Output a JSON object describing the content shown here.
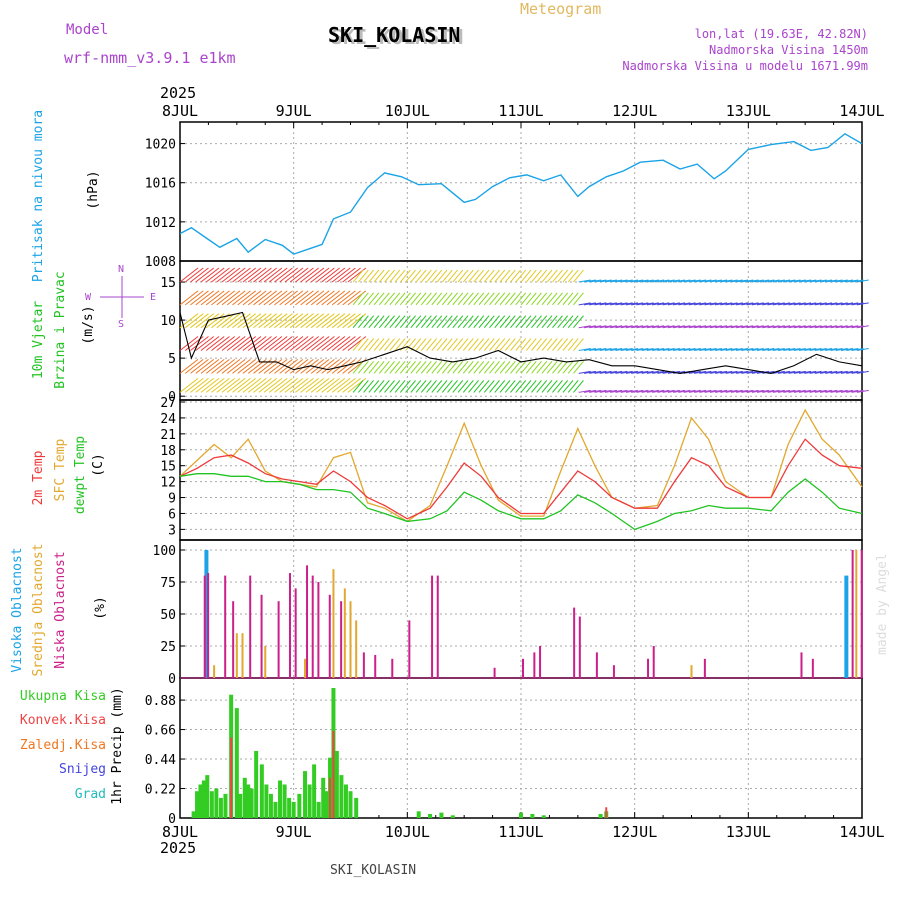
{
  "header": {
    "model_label": "Model",
    "model_name": "wrf-nmm_v3.9.1 e1km",
    "station": "SKI_KOLASIN",
    "product": "Meteogram",
    "lonlat": "lon,lat (19.63E, 42.82N)",
    "elevation": "Nadmorska Visina 1450m",
    "model_elevation": "Nadmorska Visina u modelu 1671.99m",
    "year": "2025",
    "footer_station": "SKI_KOLASIN",
    "watermark": "made by Angel"
  },
  "colors": {
    "pressure": "#1aa3e6",
    "temp": "#ee3a3a",
    "sfc": "#e2a82e",
    "dew": "#22c322",
    "high_cloud": "#1aa3e6",
    "mid_cloud": "#e2a82e",
    "low_cloud": "#cc1f8a",
    "total_precip": "#33cc22",
    "conv_precip": "#ee4444",
    "frz_precip": "#ee7722",
    "snow": "#4444dd",
    "grad": "#22bbbb",
    "wind_label": "#22c322",
    "dir_label": "#aa44cc"
  },
  "time_axis": {
    "labels": [
      "8JUL",
      "9JUL",
      "10JUL",
      "11JUL",
      "12JUL",
      "13JUL",
      "14JUL"
    ],
    "start": "2025-07-08T00:00",
    "end": "2025-07-14T00:00"
  },
  "panels": {
    "pressure": {
      "ylabel1": "Pritisak na nivou mora",
      "ylabel2": "(hPa)"
    },
    "wind": {
      "ylabel1": "10m Vjetar",
      "ylabel2": "Brzina i Pravac",
      "ylabel3": "(m/s)",
      "compass_n": "N",
      "compass_s": "S",
      "compass_w": "W",
      "compass_e": "E"
    },
    "temp": {
      "ylabel1": "2m Temp",
      "ylabel2": "SFC Temp",
      "ylabel3": "dewpt Temp",
      "ylabel4": "(C)"
    },
    "cloud": {
      "ylabel1": "Visoka Oblacnost",
      "ylabel2": "Srednja Oblacnost",
      "ylabel3": "Niska Oblacnost",
      "ylabel4": "(%)"
    },
    "precip": {
      "legend": [
        "Ukupna Kisa",
        "Konvek.Kisa",
        "Zaledj.Kisa",
        "Snijeg",
        "Grad"
      ],
      "ylabel": "1hr Precip (mm)"
    }
  },
  "chart_data": [
    {
      "type": "line",
      "title": "Pritisak na nivou mora",
      "ylabel": "(hPa)",
      "ylim": [
        1008,
        1022
      ],
      "yticks": [
        1008,
        1012,
        1016,
        1020
      ],
      "x_days": [
        0.0,
        0.1,
        0.25,
        0.35,
        0.5,
        0.6,
        0.75,
        0.9,
        1.0,
        1.15,
        1.25,
        1.35,
        1.5,
        1.65,
        1.8,
        1.95,
        2.1,
        2.3,
        2.5,
        2.6,
        2.75,
        2.9,
        3.05,
        3.2,
        3.35,
        3.5,
        3.6,
        3.75,
        3.9,
        4.05,
        4.25,
        4.4,
        4.55,
        4.7,
        4.8,
        5.0,
        5.2,
        5.4,
        5.55,
        5.7,
        5.85,
        6.0
      ],
      "series": [
        {
          "name": "Pritisak na nivou mora",
          "values": [
            1010.8,
            1011.4,
            1010.2,
            1009.4,
            1010.3,
            1008.9,
            1010.2,
            1009.6,
            1008.7,
            1009.3,
            1009.7,
            1012.3,
            1013.0,
            1015.5,
            1017.0,
            1016.6,
            1015.8,
            1015.9,
            1014.0,
            1014.3,
            1015.6,
            1016.5,
            1016.8,
            1016.2,
            1016.8,
            1014.6,
            1015.6,
            1016.6,
            1017.2,
            1018.1,
            1018.3,
            1017.4,
            1017.9,
            1016.4,
            1017.2,
            1019.4,
            1019.9,
            1020.2,
            1019.3,
            1019.6,
            1021.0,
            1020.0
          ]
        }
      ]
    },
    {
      "type": "line",
      "title": "10m Vjetar Brzina i Pravac",
      "ylabel": "(m/s)",
      "ylim": [
        -0.5,
        17.5
      ],
      "yticks": [
        0,
        5,
        10,
        15
      ],
      "x_days": [
        0.0,
        0.1,
        0.25,
        0.4,
        0.55,
        0.7,
        0.85,
        1.0,
        1.15,
        1.3,
        1.45,
        1.6,
        1.8,
        2.0,
        2.2,
        2.4,
        2.6,
        2.8,
        3.0,
        3.2,
        3.4,
        3.6,
        3.8,
        4.0,
        4.2,
        4.4,
        4.6,
        4.8,
        5.0,
        5.2,
        5.4,
        5.6,
        5.8,
        6.0
      ],
      "series": [
        {
          "name": "10m Vjetar",
          "values": [
            11.0,
            5.0,
            10.0,
            10.5,
            11.0,
            4.5,
            4.5,
            3.5,
            4.0,
            3.5,
            4.0,
            4.5,
            5.5,
            6.5,
            5.0,
            4.5,
            5.0,
            6.0,
            4.5,
            5.0,
            4.5,
            4.8,
            4.0,
            4.0,
            3.5,
            3.0,
            3.5,
            4.0,
            3.5,
            3.0,
            4.0,
            5.5,
            4.5,
            4.0
          ]
        }
      ]
    },
    {
      "type": "line",
      "title": "2m Temp / SFC Temp / dewpt Temp",
      "ylabel": "(C)",
      "ylim": [
        1,
        27
      ],
      "yticks": [
        3,
        6,
        9,
        12,
        15,
        18,
        21,
        24,
        27
      ],
      "x_days": [
        0.0,
        0.15,
        0.3,
        0.45,
        0.6,
        0.75,
        0.9,
        1.05,
        1.2,
        1.35,
        1.5,
        1.65,
        1.8,
        2.0,
        2.2,
        2.35,
        2.5,
        2.65,
        2.8,
        3.0,
        3.2,
        3.35,
        3.5,
        3.65,
        3.8,
        4.0,
        4.2,
        4.35,
        4.5,
        4.65,
        4.8,
        5.0,
        5.2,
        5.35,
        5.5,
        5.65,
        5.8,
        6.0
      ],
      "series": [
        {
          "name": "2m Temp",
          "values": [
            13.0,
            14.5,
            16.5,
            17.0,
            15.5,
            13.5,
            12.5,
            12.0,
            11.5,
            14.0,
            12.0,
            9.0,
            7.5,
            5.0,
            7.0,
            11.0,
            15.5,
            13.0,
            9.0,
            6.0,
            6.0,
            10.0,
            14.0,
            12.0,
            9.0,
            7.0,
            7.0,
            12.0,
            16.5,
            15.0,
            11.0,
            9.0,
            9.0,
            15.0,
            20.0,
            17.0,
            15.0,
            14.5
          ]
        },
        {
          "name": "SFC Temp",
          "values": [
            13.0,
            16.0,
            19.0,
            16.5,
            20.0,
            14.0,
            12.0,
            11.5,
            11.0,
            16.5,
            17.5,
            8.0,
            7.0,
            4.5,
            7.5,
            15.0,
            23.0,
            15.0,
            8.5,
            5.5,
            5.5,
            14.0,
            22.0,
            15.0,
            9.0,
            7.0,
            7.5,
            15.0,
            24.0,
            20.0,
            12.0,
            9.0,
            9.0,
            19.0,
            25.5,
            20.0,
            17.0,
            11.0
          ]
        },
        {
          "name": "dewpt Temp",
          "values": [
            13.0,
            13.5,
            13.5,
            13.0,
            13.0,
            12.0,
            12.0,
            11.5,
            10.5,
            10.5,
            10.0,
            7.0,
            6.0,
            4.5,
            5.0,
            6.5,
            10.0,
            8.5,
            6.5,
            5.0,
            5.0,
            6.5,
            9.5,
            8.0,
            6.0,
            3.0,
            4.5,
            6.0,
            6.5,
            7.5,
            7.0,
            7.0,
            6.5,
            10.0,
            12.5,
            10.0,
            7.0,
            6.0
          ]
        }
      ]
    },
    {
      "type": "bar",
      "title": "Visoka / Srednja / Niska Oblacnost",
      "ylabel": "(%)",
      "ylim": [
        0,
        100
      ],
      "yticks": [
        0,
        25,
        50,
        75,
        100
      ],
      "series": [
        {
          "name": "Visoka Oblacnost",
          "x_days": [
            0.25,
            5.88
          ],
          "values": [
            100,
            80
          ]
        },
        {
          "name": "Srednja Oblacnost",
          "x_days": [
            0.3,
            0.5,
            0.55,
            0.75,
            1.1,
            1.35,
            1.45,
            1.5,
            1.55,
            4.5,
            5.95
          ],
          "values": [
            10,
            35,
            35,
            25,
            15,
            85,
            70,
            60,
            45,
            10,
            100
          ]
        },
        {
          "name": "Niska Oblacnost",
          "x_days": [
            0.2,
            0.23,
            0.38,
            0.45,
            0.6,
            0.7,
            0.85,
            0.95,
            1.0,
            1.1,
            1.15,
            1.2,
            1.3,
            1.4,
            1.6,
            1.7,
            1.85,
            2.0,
            2.2,
            2.25,
            2.75,
            3.0,
            3.1,
            3.15,
            3.45,
            3.5,
            3.65,
            3.8,
            4.1,
            4.15,
            4.6,
            5.45,
            5.55,
            5.9,
            5.98
          ],
          "values": [
            80,
            82,
            80,
            60,
            80,
            65,
            60,
            82,
            70,
            88,
            80,
            75,
            65,
            60,
            20,
            18,
            15,
            45,
            80,
            80,
            8,
            15,
            20,
            25,
            55,
            48,
            20,
            10,
            15,
            25,
            15,
            20,
            15,
            100,
            100
          ]
        }
      ]
    },
    {
      "type": "bar",
      "title": "1hr Precip",
      "ylabel": "1hr Precip (mm)",
      "ylim": [
        0,
        1.0
      ],
      "yticks": [
        0,
        0.22,
        0.44,
        0.66,
        0.88
      ],
      "series": [
        {
          "name": "Ukupna Kisa",
          "x_days": [
            0.12,
            0.15,
            0.18,
            0.21,
            0.24,
            0.28,
            0.32,
            0.36,
            0.4,
            0.45,
            0.5,
            0.53,
            0.57,
            0.6,
            0.63,
            0.67,
            0.72,
            0.76,
            0.8,
            0.84,
            0.88,
            0.92,
            0.96,
            1.0,
            1.05,
            1.1,
            1.14,
            1.18,
            1.22,
            1.26,
            1.29,
            1.32,
            1.35,
            1.38,
            1.42,
            1.46,
            1.5,
            1.55,
            2.1,
            2.2,
            2.3,
            2.4,
            3.0,
            3.1,
            3.2,
            3.7,
            3.75
          ],
          "values": [
            0.05,
            0.2,
            0.25,
            0.28,
            0.32,
            0.2,
            0.22,
            0.15,
            0.18,
            0.92,
            0.82,
            0.18,
            0.3,
            0.25,
            0.22,
            0.5,
            0.4,
            0.25,
            0.18,
            0.12,
            0.28,
            0.25,
            0.15,
            0.12,
            0.18,
            0.35,
            0.25,
            0.4,
            0.12,
            0.3,
            0.2,
            0.45,
            0.97,
            0.5,
            0.32,
            0.25,
            0.2,
            0.15,
            0.05,
            0.03,
            0.04,
            0.02,
            0.04,
            0.03,
            0.02,
            0.03,
            0.05
          ]
        },
        {
          "name": "Konvek.Kisa",
          "x_days": [
            0.45,
            1.32,
            1.35,
            3.75
          ],
          "values": [
            0.6,
            0.3,
            0.65,
            0.08
          ]
        }
      ]
    }
  ]
}
